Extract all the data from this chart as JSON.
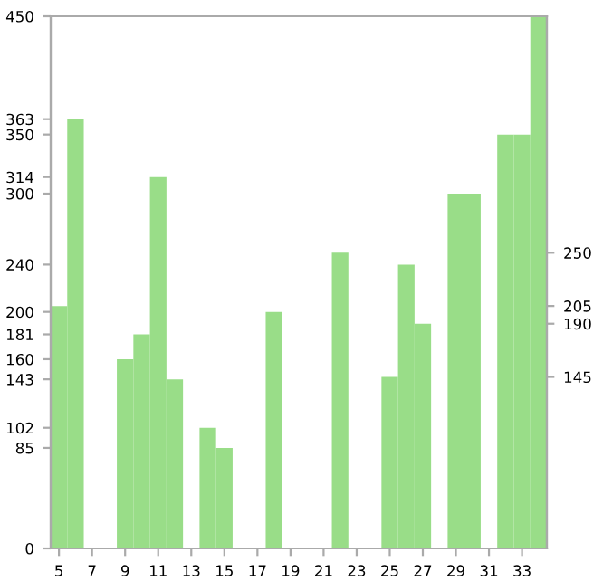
{
  "chart_data": {
    "type": "bar",
    "categories": [
      "5",
      null,
      "7",
      null,
      "9",
      null,
      "11",
      null,
      "13",
      null,
      "15",
      null,
      "17",
      null,
      "19",
      null,
      "21",
      null,
      "23",
      null,
      "25",
      null,
      "27",
      null,
      "29",
      null,
      "31",
      null,
      "33",
      null
    ],
    "values": [
      205,
      363,
      0,
      0,
      160,
      181,
      314,
      143,
      0,
      102,
      85,
      0,
      0,
      200,
      0,
      0,
      0,
      250,
      0,
      0,
      145,
      240,
      190,
      0,
      300,
      300,
      0,
      350,
      350,
      450
    ],
    "color": "#99dd88",
    "ylim": [
      0,
      450
    ],
    "yticks": [
      0,
      85,
      102,
      143,
      160,
      181,
      200,
      240,
      300,
      314,
      350,
      363,
      450
    ],
    "y2lim": [
      0,
      450
    ],
    "y2ticks": [
      145,
      190,
      205,
      250
    ],
    "grid": false
  }
}
